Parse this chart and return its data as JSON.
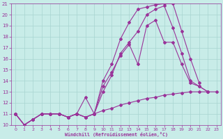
{
  "xlabel": "Windchill (Refroidissement éolien,°C)",
  "xlim": [
    -0.5,
    23.5
  ],
  "ylim": [
    10,
    21
  ],
  "yticks": [
    10,
    11,
    12,
    13,
    14,
    15,
    16,
    17,
    18,
    19,
    20,
    21
  ],
  "xticks": [
    0,
    1,
    2,
    3,
    4,
    5,
    6,
    7,
    8,
    9,
    10,
    11,
    12,
    13,
    14,
    15,
    16,
    17,
    18,
    19,
    20,
    21,
    22,
    23
  ],
  "bg_color": "#c8ece8",
  "grid_color": "#a8d4d0",
  "line_color": "#993399",
  "markersize": 2.0,
  "linewidth": 0.8,
  "line1_x": [
    0,
    1,
    2,
    3,
    4,
    5,
    6,
    7,
    8,
    9,
    10,
    11,
    12,
    13,
    14,
    15,
    16,
    17,
    18,
    19,
    20,
    21
  ],
  "line1_y": [
    11.0,
    10.0,
    10.5,
    11.0,
    11.0,
    11.0,
    10.7,
    11.0,
    10.7,
    11.0,
    14.0,
    15.5,
    17.8,
    19.3,
    20.5,
    20.7,
    20.9,
    21.0,
    21.0,
    18.5,
    16.0,
    13.8
  ],
  "line2_x": [
    0,
    1,
    2,
    3,
    4,
    5,
    6,
    7,
    8,
    9,
    10,
    11,
    12,
    13,
    14,
    15,
    16,
    17,
    18,
    19,
    20,
    21,
    22
  ],
  "line2_y": [
    11.0,
    10.0,
    10.5,
    11.0,
    11.0,
    11.0,
    10.7,
    11.0,
    10.7,
    11.0,
    13.0,
    14.5,
    16.5,
    17.5,
    18.5,
    20.0,
    20.5,
    20.8,
    18.8,
    16.5,
    14.0,
    13.5,
    13.0
  ],
  "line3_x": [
    0,
    1,
    2,
    3,
    4,
    5,
    6,
    7,
    8,
    9,
    10,
    11,
    12,
    13,
    14,
    15,
    16,
    17,
    18,
    19,
    20,
    21,
    22
  ],
  "line3_y": [
    11.0,
    10.0,
    10.5,
    11.0,
    11.0,
    11.0,
    10.7,
    11.0,
    12.5,
    11.0,
    13.5,
    14.8,
    16.3,
    17.3,
    15.5,
    19.0,
    19.5,
    17.5,
    17.5,
    15.5,
    13.8,
    13.5,
    13.0
  ],
  "line4_x": [
    0,
    1,
    2,
    3,
    4,
    5,
    6,
    7,
    8,
    9,
    10,
    11,
    12,
    13,
    14,
    15,
    16,
    17,
    18,
    19,
    20,
    21,
    22,
    23
  ],
  "line4_y": [
    11.0,
    10.0,
    10.5,
    11.0,
    11.0,
    11.0,
    10.7,
    11.0,
    10.7,
    11.0,
    11.3,
    11.5,
    11.8,
    12.0,
    12.2,
    12.4,
    12.5,
    12.7,
    12.8,
    12.9,
    13.0,
    13.0,
    13.0,
    13.0
  ]
}
